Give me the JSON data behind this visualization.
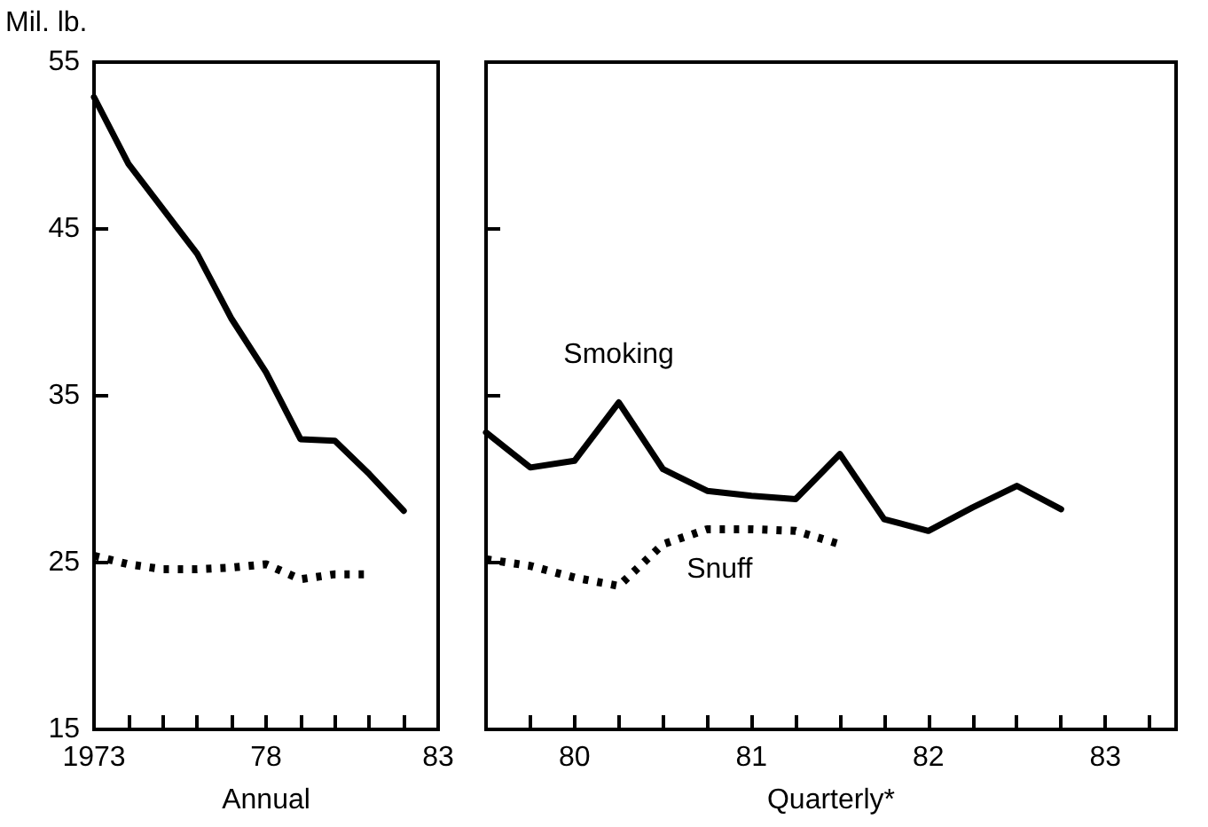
{
  "chart_data": [
    {
      "type": "line",
      "ylabel": "Mil. lb.",
      "xlabel": "Annual",
      "marker": "none",
      "x": [
        1973,
        1974,
        1975,
        1976,
        1977,
        1978,
        1979,
        1980,
        1981,
        1982
      ],
      "series": [
        {
          "color": "#000000",
          "line_style": "solid",
          "values": [
            52.9,
            48.9,
            46.2,
            43.5,
            39.6,
            36.4,
            32.4,
            32.3,
            30.3,
            28.1
          ]
        },
        {
          "color": "#000000",
          "line_style": "dotted",
          "values": [
            25.4,
            24.9,
            24.6,
            24.6,
            24.7,
            24.9,
            24.0,
            24.3,
            24.3,
            null
          ]
        }
      ],
      "xlim": [
        1973,
        1983
      ],
      "xticks": [
        1973,
        {
          "value": 1974,
          "label": null
        },
        {
          "value": 1975,
          "label": null
        },
        {
          "value": 1976,
          "label": null
        },
        {
          "value": 1977,
          "label": null
        },
        {
          "value": 1978,
          "label": "78"
        },
        {
          "value": 1979,
          "label": null
        },
        {
          "value": 1980,
          "label": null
        },
        {
          "value": 1981,
          "label": null
        },
        {
          "value": 1982,
          "label": null
        },
        {
          "value": 1983,
          "label": "83"
        }
      ],
      "ylim": [
        15,
        55
      ],
      "yticks": [
        15,
        25,
        35,
        45,
        55
      ]
    },
    {
      "type": "line",
      "xlabel": "Quarterly*",
      "marker": "none",
      "tick_labels": "x",
      "x": [
        79.5,
        79.75,
        80,
        80.25,
        80.5,
        80.75,
        81,
        81.25,
        81.5,
        81.75,
        82,
        82.25,
        82.5,
        82.75
      ],
      "series": [
        {
          "name": "Smoking",
          "color": "#000000",
          "line_style": "solid",
          "values": [
            32.8,
            30.7,
            31.1,
            34.6,
            30.6,
            29.3,
            29.0,
            28.8,
            31.5,
            27.6,
            26.9,
            28.3,
            29.6,
            28.2
          ]
        },
        {
          "name": "Snuff",
          "color": "#000000",
          "line_style": "dotted",
          "values": [
            25.2,
            24.8,
            24.1,
            23.6,
            26.1,
            27.0,
            27.0,
            26.9,
            26.1,
            null,
            null,
            null,
            null,
            null
          ]
        }
      ],
      "xlim": [
        79.5,
        83.4
      ],
      "xticks": [
        {
          "value": 79.75,
          "label": null
        },
        80,
        {
          "value": 80.25,
          "label": null
        },
        {
          "value": 80.5,
          "label": null
        },
        {
          "value": 80.75,
          "label": null
        },
        81,
        {
          "value": 81.25,
          "label": null
        },
        {
          "value": 81.5,
          "label": null
        },
        {
          "value": 81.75,
          "label": null
        },
        82,
        {
          "value": 82.25,
          "label": null
        },
        {
          "value": 82.5,
          "label": null
        },
        {
          "value": 82.75,
          "label": null
        },
        83,
        {
          "value": 83.25,
          "label": null
        }
      ],
      "ylim": [
        15,
        55
      ],
      "yticks": [
        15,
        25,
        35,
        45,
        55
      ]
    }
  ]
}
